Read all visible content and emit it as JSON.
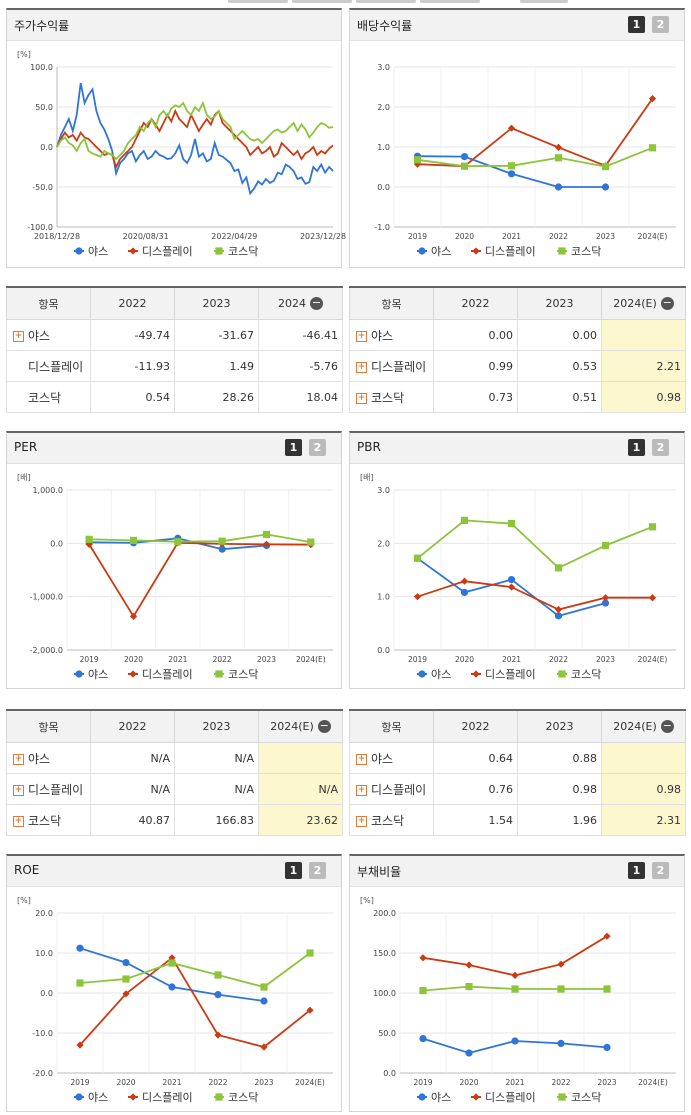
{
  "ui": {
    "plus": "+",
    "minus": "−",
    "btn1": "1",
    "btn2": "2"
  },
  "colors": {
    "yas": "#2f74d8",
    "display": "#cc3a12",
    "kosdaq": "#8cc43a"
  },
  "legend": [
    "야스",
    "디스플레이",
    "코스닥"
  ],
  "stock_return": {
    "title": "주가수익률",
    "unit": "[%]",
    "chart_data": {
      "type": "line",
      "title": "주가수익률",
      "ylabel": "[%]",
      "ylim": [
        -100,
        100
      ],
      "yticks": [
        "100.0",
        "50.0",
        "0.0",
        "-50.0",
        "-100.0"
      ],
      "xticks": [
        "2018/12/28",
        "2020/08/31",
        "2022/04/29",
        "2023/12/28"
      ],
      "series": [
        {
          "name": "야스",
          "values": [
            0,
            15,
            25,
            35,
            20,
            40,
            80,
            55,
            65,
            72,
            45,
            30,
            22,
            10,
            -5,
            -33,
            -20,
            -15,
            -8,
            -5,
            -18,
            -10,
            -5,
            -15,
            -12,
            -5,
            -10,
            -12,
            -15,
            -14,
            -8,
            2,
            -15,
            -20,
            -10,
            10,
            -12,
            -8,
            -18,
            -15,
            5,
            -10,
            -12,
            -16,
            -20,
            -30,
            -28,
            -45,
            -38,
            -58,
            -52,
            -43,
            -47,
            -40,
            -45,
            -42,
            -32,
            -34,
            -22,
            -25,
            -30,
            -40,
            -38,
            -46,
            -44,
            -25,
            -30,
            -22,
            -32,
            -25,
            -30
          ]
        },
        {
          "name": "디스플레이",
          "values": [
            0,
            10,
            18,
            12,
            15,
            8,
            18,
            12,
            10,
            5,
            0,
            -5,
            -10,
            -8,
            -10,
            -25,
            -15,
            -10,
            -5,
            0,
            10,
            20,
            30,
            25,
            35,
            28,
            20,
            30,
            40,
            32,
            45,
            35,
            30,
            25,
            40,
            30,
            20,
            28,
            35,
            28,
            40,
            45,
            30,
            25,
            20,
            15,
            10,
            5,
            0,
            -10,
            -5,
            0,
            -8,
            -5,
            0,
            -12,
            -8,
            5,
            0,
            -5,
            -10,
            -5,
            -15,
            -8,
            -5,
            0,
            -10,
            -5,
            -8,
            -2,
            2
          ]
        },
        {
          "name": "코스닥",
          "values": [
            0,
            8,
            12,
            5,
            2,
            -5,
            5,
            10,
            -5,
            -8,
            -10,
            -12,
            -5,
            -8,
            -10,
            -15,
            -10,
            -5,
            5,
            10,
            15,
            25,
            20,
            30,
            35,
            25,
            40,
            45,
            38,
            48,
            52,
            50,
            55,
            45,
            40,
            50,
            45,
            55,
            40,
            35,
            38,
            45,
            35,
            30,
            25,
            10,
            15,
            20,
            15,
            10,
            8,
            10,
            5,
            10,
            15,
            20,
            22,
            18,
            20,
            25,
            30,
            20,
            28,
            22,
            12,
            18,
            25,
            30,
            28,
            24,
            25
          ]
        }
      ]
    }
  },
  "dividend": {
    "title": "배당수익률",
    "unit": "",
    "chart_data": {
      "type": "line",
      "title": "배당수익률",
      "ylim": [
        -1,
        3
      ],
      "yticks": [
        "3.0",
        "2.0",
        "1.0",
        "0.0",
        "-1.0"
      ],
      "categories": [
        "2019",
        "2020",
        "2021",
        "2022",
        "2023",
        "2024(E)"
      ],
      "series": [
        {
          "name": "야스",
          "values": [
            0.77,
            0.76,
            0.33,
            0.0,
            0.0,
            null
          ]
        },
        {
          "name": "디스플레이",
          "values": [
            0.57,
            0.52,
            1.47,
            0.99,
            0.53,
            2.21
          ]
        },
        {
          "name": "코스닥",
          "values": [
            0.68,
            0.52,
            0.53,
            0.73,
            0.51,
            0.98
          ]
        }
      ]
    }
  },
  "stock_table": {
    "headers": [
      "항목",
      "2022",
      "2023",
      "2024"
    ],
    "rows": [
      {
        "name": "야스",
        "plus": true,
        "values": [
          "-49.74",
          "-31.67",
          "-46.41"
        ]
      },
      {
        "name": "디스플레이",
        "plus": false,
        "values": [
          "-11.93",
          "1.49",
          "-5.76"
        ]
      },
      {
        "name": "코스닥",
        "plus": false,
        "values": [
          "0.54",
          "28.26",
          "18.04"
        ]
      }
    ]
  },
  "dividend_table": {
    "headers": [
      "항목",
      "2022",
      "2023",
      "2024(E)"
    ],
    "rows": [
      {
        "name": "야스",
        "plus": true,
        "values": [
          "0.00",
          "0.00",
          ""
        ]
      },
      {
        "name": "디스플레이",
        "plus": true,
        "values": [
          "0.99",
          "0.53",
          "2.21"
        ]
      },
      {
        "name": "코스닥",
        "plus": true,
        "values": [
          "0.73",
          "0.51",
          "0.98"
        ]
      }
    ]
  },
  "per": {
    "title": "PER",
    "unit": "[배]",
    "chart_data": {
      "type": "line",
      "title": "PER",
      "ylabel": "[배]",
      "ylim": [
        -2000,
        1000
      ],
      "yticks": [
        "1,000.0",
        "0.0",
        "-1,000.0",
        "-2,000.0"
      ],
      "categories": [
        "2019",
        "2020",
        "2021",
        "2022",
        "2023",
        "2024(E)"
      ],
      "series": [
        {
          "name": "야스",
          "values": [
            20,
            10,
            95,
            -110,
            -40,
            null
          ]
        },
        {
          "name": "디스플레이",
          "values": [
            -20,
            -1370,
            10,
            -10,
            -20,
            -25
          ]
        },
        {
          "name": "코스닥",
          "values": [
            75,
            55,
            30,
            40.87,
            166.83,
            23.62
          ]
        }
      ]
    }
  },
  "pbr": {
    "title": "PBR",
    "unit": "[배]",
    "chart_data": {
      "type": "line",
      "title": "PBR",
      "ylabel": "[배]",
      "ylim": [
        0,
        3
      ],
      "yticks": [
        "3.0",
        "2.0",
        "1.0",
        "0.0"
      ],
      "categories": [
        "2019",
        "2020",
        "2021",
        "2022",
        "2023",
        "2024(E)"
      ],
      "series": [
        {
          "name": "야스",
          "values": [
            1.72,
            1.08,
            1.32,
            0.64,
            0.88,
            null
          ]
        },
        {
          "name": "디스플레이",
          "values": [
            1.0,
            1.29,
            1.18,
            0.76,
            0.98,
            0.98
          ]
        },
        {
          "name": "코스닥",
          "values": [
            1.72,
            2.43,
            2.37,
            1.54,
            1.96,
            2.31
          ]
        }
      ]
    }
  },
  "per_table": {
    "headers": [
      "항목",
      "2022",
      "2023",
      "2024(E)"
    ],
    "rows": [
      {
        "name": "야스",
        "plus": true,
        "values": [
          "N/A",
          "N/A",
          ""
        ]
      },
      {
        "name": "디스플레이",
        "plus": true,
        "values": [
          "N/A",
          "N/A",
          "N/A"
        ]
      },
      {
        "name": "코스닥",
        "plus": true,
        "values": [
          "40.87",
          "166.83",
          "23.62"
        ]
      }
    ]
  },
  "pbr_table": {
    "headers": [
      "항목",
      "2022",
      "2023",
      "2024(E)"
    ],
    "rows": [
      {
        "name": "야스",
        "plus": true,
        "values": [
          "0.64",
          "0.88",
          ""
        ]
      },
      {
        "name": "디스플레이",
        "plus": true,
        "values": [
          "0.76",
          "0.98",
          "0.98"
        ]
      },
      {
        "name": "코스닥",
        "plus": true,
        "values": [
          "1.54",
          "1.96",
          "2.31"
        ]
      }
    ]
  },
  "roe": {
    "title": "ROE",
    "unit": "[%]",
    "chart_data": {
      "type": "line",
      "title": "ROE",
      "ylabel": "[%]",
      "ylim": [
        -20,
        20
      ],
      "yticks": [
        "20.0",
        "10.0",
        "0.0",
        "-10.0",
        "-20.0"
      ],
      "categories": [
        "2019",
        "2020",
        "2021",
        "2022",
        "2023",
        "2024(E)"
      ],
      "series": [
        {
          "name": "야스",
          "values": [
            11.2,
            7.6,
            1.5,
            -0.4,
            -2.0,
            null
          ]
        },
        {
          "name": "디스플레이",
          "values": [
            -13.0,
            -0.2,
            8.8,
            -10.5,
            -13.5,
            -4.3
          ]
        },
        {
          "name": "코스닥",
          "values": [
            2.5,
            3.5,
            7.5,
            4.5,
            1.5,
            10.0
          ]
        }
      ]
    }
  },
  "debt": {
    "title": "부채비율",
    "unit": "[%]",
    "chart_data": {
      "type": "line",
      "title": "부채비율",
      "ylabel": "[%]",
      "ylim": [
        0,
        200
      ],
      "yticks": [
        "200.0",
        "150.0",
        "100.0",
        "50.0",
        "0.0"
      ],
      "categories": [
        "2019",
        "2020",
        "2021",
        "2022",
        "2023",
        "2024(E)"
      ],
      "series": [
        {
          "name": "야스",
          "values": [
            43,
            25,
            40,
            37,
            32,
            null
          ]
        },
        {
          "name": "디스플레이",
          "values": [
            144,
            135,
            122,
            136,
            171,
            null
          ]
        },
        {
          "name": "코스닥",
          "values": [
            103,
            108,
            105,
            105,
            105,
            null
          ]
        }
      ]
    }
  }
}
